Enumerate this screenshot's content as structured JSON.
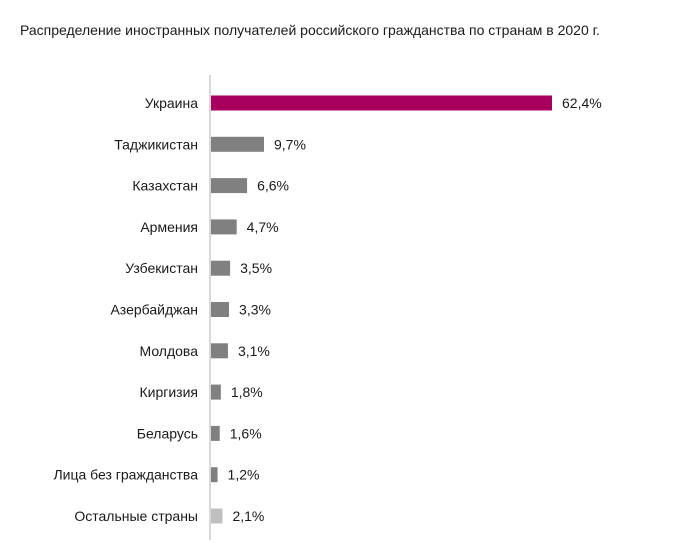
{
  "chart_data": {
    "type": "bar",
    "orientation": "horizontal",
    "title": "Распределение иностранных получателей российского гражданства по странам в 2020 г.",
    "categories": [
      "Украина",
      "Таджикистан",
      "Казахстан",
      "Армения",
      "Узбекистан",
      "Азербайджан",
      "Молдова",
      "Киргизия",
      "Беларусь",
      "Лица без гражданства",
      "Остальные страны"
    ],
    "values": [
      62.4,
      9.7,
      6.6,
      4.7,
      3.5,
      3.3,
      3.1,
      1.8,
      1.6,
      1.2,
      2.1
    ],
    "value_labels": [
      "62,4%",
      "9,7%",
      "6,6%",
      "4,7%",
      "3,5%",
      "3,3%",
      "3,1%",
      "1,8%",
      "1,6%",
      "1,2%",
      "2,1%"
    ],
    "bar_colors": [
      "#a8005f",
      "#808080",
      "#808080",
      "#808080",
      "#808080",
      "#808080",
      "#808080",
      "#808080",
      "#808080",
      "#808080",
      "#bfbfbf"
    ],
    "axis_color": "#b0b0b0",
    "xlim": [
      0,
      62.4
    ],
    "grid": false,
    "legend": "none"
  }
}
